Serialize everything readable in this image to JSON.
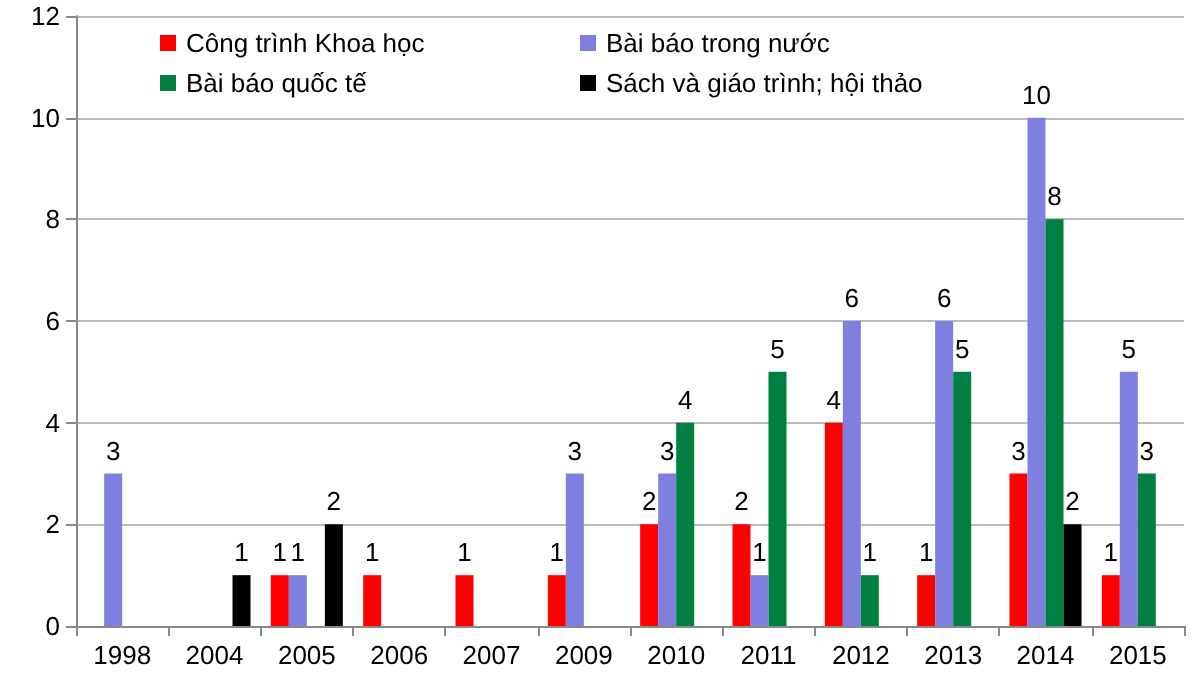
{
  "chart_data": {
    "type": "bar",
    "categories": [
      "1998",
      "2004",
      "2005",
      "2006",
      "2007",
      "2009",
      "2010",
      "2011",
      "2012",
      "2013",
      "2014",
      "2015"
    ],
    "series": [
      {
        "name": "Công trình Khoa học",
        "color": "#ff0000",
        "values": [
          null,
          null,
          1,
          1,
          1,
          1,
          2,
          2,
          4,
          1,
          3,
          1
        ]
      },
      {
        "name": "Bài báo trong nước",
        "color": "#7f7fdf",
        "values": [
          3,
          null,
          1,
          null,
          null,
          3,
          3,
          1,
          6,
          6,
          10,
          5
        ]
      },
      {
        "name": "Bài báo quốc tế",
        "color": "#008040",
        "values": [
          null,
          null,
          null,
          null,
          null,
          null,
          4,
          5,
          1,
          5,
          8,
          3
        ]
      },
      {
        "name": "Sách và giáo trình; hội thảo",
        "color": "#000000",
        "values": [
          null,
          1,
          2,
          null,
          null,
          null,
          null,
          null,
          null,
          null,
          2,
          null
        ]
      }
    ],
    "ylim": [
      0,
      12
    ],
    "yticks": [
      0,
      2,
      4,
      6,
      8,
      10,
      12
    ],
    "grid": "y",
    "legend": "top",
    "data_labels": true
  }
}
